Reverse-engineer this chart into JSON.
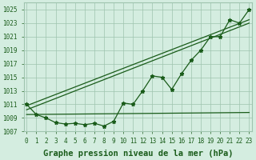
{
  "xlabel": "Graphe pression niveau de la mer (hPa)",
  "x_values": [
    0,
    1,
    2,
    3,
    4,
    5,
    6,
    7,
    8,
    9,
    10,
    11,
    12,
    13,
    14,
    15,
    16,
    17,
    18,
    19,
    20,
    21,
    22,
    23
  ],
  "y_main": [
    1011.0,
    1009.5,
    1009.0,
    1008.3,
    1008.1,
    1008.2,
    1008.0,
    1008.2,
    1007.8,
    1008.5,
    1011.2,
    1011.0,
    1013.0,
    1015.2,
    1015.0,
    1013.2,
    1015.5,
    1017.5,
    1019.0,
    1021.0,
    1021.0,
    1023.5,
    1023.0,
    1025.0
  ],
  "trend_lines": [
    {
      "x0": 0,
      "y0": 1010.8,
      "x1": 23,
      "y1": 1023.5
    },
    {
      "x0": 0,
      "y0": 1010.0,
      "x1": 23,
      "y1": 1023.0
    },
    {
      "x0": 0,
      "y0": 1009.5,
      "x1": 23,
      "y1": 1009.8
    }
  ],
  "ylim": [
    1007,
    1026
  ],
  "xlim": [
    -0.3,
    23.3
  ],
  "yticks": [
    1007,
    1009,
    1011,
    1013,
    1015,
    1017,
    1019,
    1021,
    1023,
    1025
  ],
  "bg_color": "#d4ede0",
  "line_color": "#1a5c1a",
  "grid_color": "#9ec4ae",
  "label_color": "#1a5c1a",
  "tick_fontsize": 5.5,
  "xlabel_fontsize": 7.5
}
